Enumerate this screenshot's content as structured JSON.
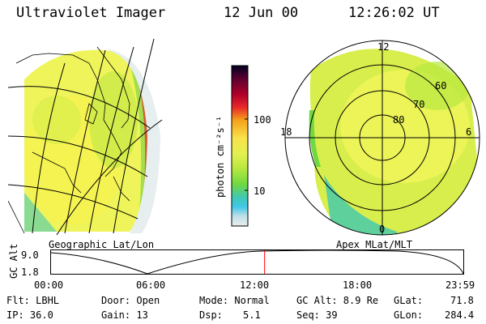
{
  "header": {
    "instrument": "Ultraviolet Imager",
    "date": "12 Jun 00",
    "time": "12:26:02 UT"
  },
  "geo_panel": {
    "caption": "Geographic Lat/Lon"
  },
  "polar_panel": {
    "caption": "Apex MLat/MLT",
    "mlt_labels": [
      "12",
      "18",
      "6",
      "0"
    ],
    "lat_labels": [
      "60",
      "70",
      "80"
    ]
  },
  "colorbar": {
    "unit_label": "photon cm⁻²s⁻¹",
    "tick_labels": [
      "100",
      "10"
    ],
    "colors": [
      "#000020",
      "#5a0030",
      "#b0002a",
      "#e8282a",
      "#f5a01a",
      "#f8e24a",
      "#e4f050",
      "#b8e840",
      "#70d840",
      "#40c8b0",
      "#40c8e8",
      "#c0e0e8",
      "#e8eef0"
    ]
  },
  "timeline": {
    "ylabel": "GC Alt",
    "y_ticks": [
      "9.0",
      "1.8"
    ],
    "x_ticks": [
      "00:00",
      "06:00",
      "12:00",
      "18:00",
      "23:59"
    ],
    "current_time_fraction": 0.518
  },
  "status": {
    "filter": "Flt: LBHL",
    "ip": "IP: 36.0",
    "door": "Door: Open",
    "gain": "Gain: 13",
    "mode": "Mode: Normal",
    "dsp_label": "Dsp:",
    "dsp_value": "5.1",
    "gc_alt": "GC Alt: 8.9 Re",
    "seq": "Seq: 39",
    "glat_label": "GLat:",
    "glat_value": "71.8",
    "glon_label": "GLon:",
    "glon_value": "284.4"
  }
}
